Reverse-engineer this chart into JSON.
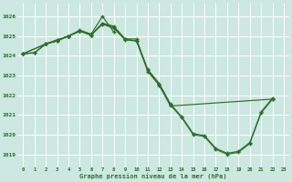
{
  "bg_color": "#cce8e0",
  "grid_color": "#ffffff",
  "line_color": "#2d6e2d",
  "ylabel_values": [
    1019,
    1020,
    1021,
    1022,
    1023,
    1024,
    1025,
    1026
  ],
  "xlabel_values": [
    0,
    1,
    2,
    3,
    4,
    5,
    6,
    7,
    8,
    9,
    10,
    11,
    12,
    13,
    14,
    15,
    16,
    17,
    18,
    19,
    20,
    21,
    22,
    23
  ],
  "xlabel_label": "Graphe pression niveau de la mer (hPa)",
  "ylim": [
    1018.4,
    1026.7
  ],
  "xlim": [
    -0.5,
    23.5
  ],
  "line_A_x": [
    0,
    1,
    2,
    3,
    4,
    5,
    6,
    7,
    8,
    9,
    10,
    11,
    12,
    13,
    14,
    15,
    16,
    17,
    18,
    19,
    20,
    21,
    22
  ],
  "line_A_y": [
    1024.1,
    1024.15,
    1024.6,
    1024.8,
    1025.0,
    1025.25,
    1025.05,
    1025.65,
    1025.5,
    1024.85,
    1024.75,
    1023.3,
    1022.6,
    1021.55,
    1020.9,
    1020.05,
    1019.95,
    1019.3,
    1019.05,
    1019.15,
    1019.6,
    1021.15,
    1021.85
  ],
  "line_B_x": [
    0,
    1,
    2,
    3,
    4,
    5,
    6,
    7,
    8
  ],
  "line_B_y": [
    1024.1,
    1024.15,
    1024.6,
    1024.75,
    1025.0,
    1025.3,
    1025.1,
    1026.0,
    1025.2
  ],
  "line_C_x": [
    0,
    2,
    3,
    4,
    5,
    6,
    7,
    8,
    9,
    10,
    11,
    12,
    13,
    14,
    15,
    16,
    17,
    18,
    19,
    20,
    21,
    22
  ],
  "line_C_y": [
    1024.1,
    1024.6,
    1024.8,
    1025.0,
    1025.25,
    1025.05,
    1025.65,
    1025.45,
    1024.85,
    1024.85,
    1023.25,
    1022.55,
    1021.5,
    1020.85,
    1020.0,
    1019.9,
    1019.25,
    1019.0,
    1019.1,
    1019.55,
    1021.1,
    1021.8
  ],
  "line_D_x": [
    0,
    2,
    3,
    4,
    5,
    6,
    7,
    8,
    9,
    10,
    11,
    12,
    13,
    22
  ],
  "line_D_y": [
    1024.1,
    1024.6,
    1024.75,
    1025.0,
    1025.25,
    1025.05,
    1025.6,
    1025.4,
    1024.8,
    1024.75,
    1023.2,
    1022.5,
    1021.45,
    1021.8
  ]
}
